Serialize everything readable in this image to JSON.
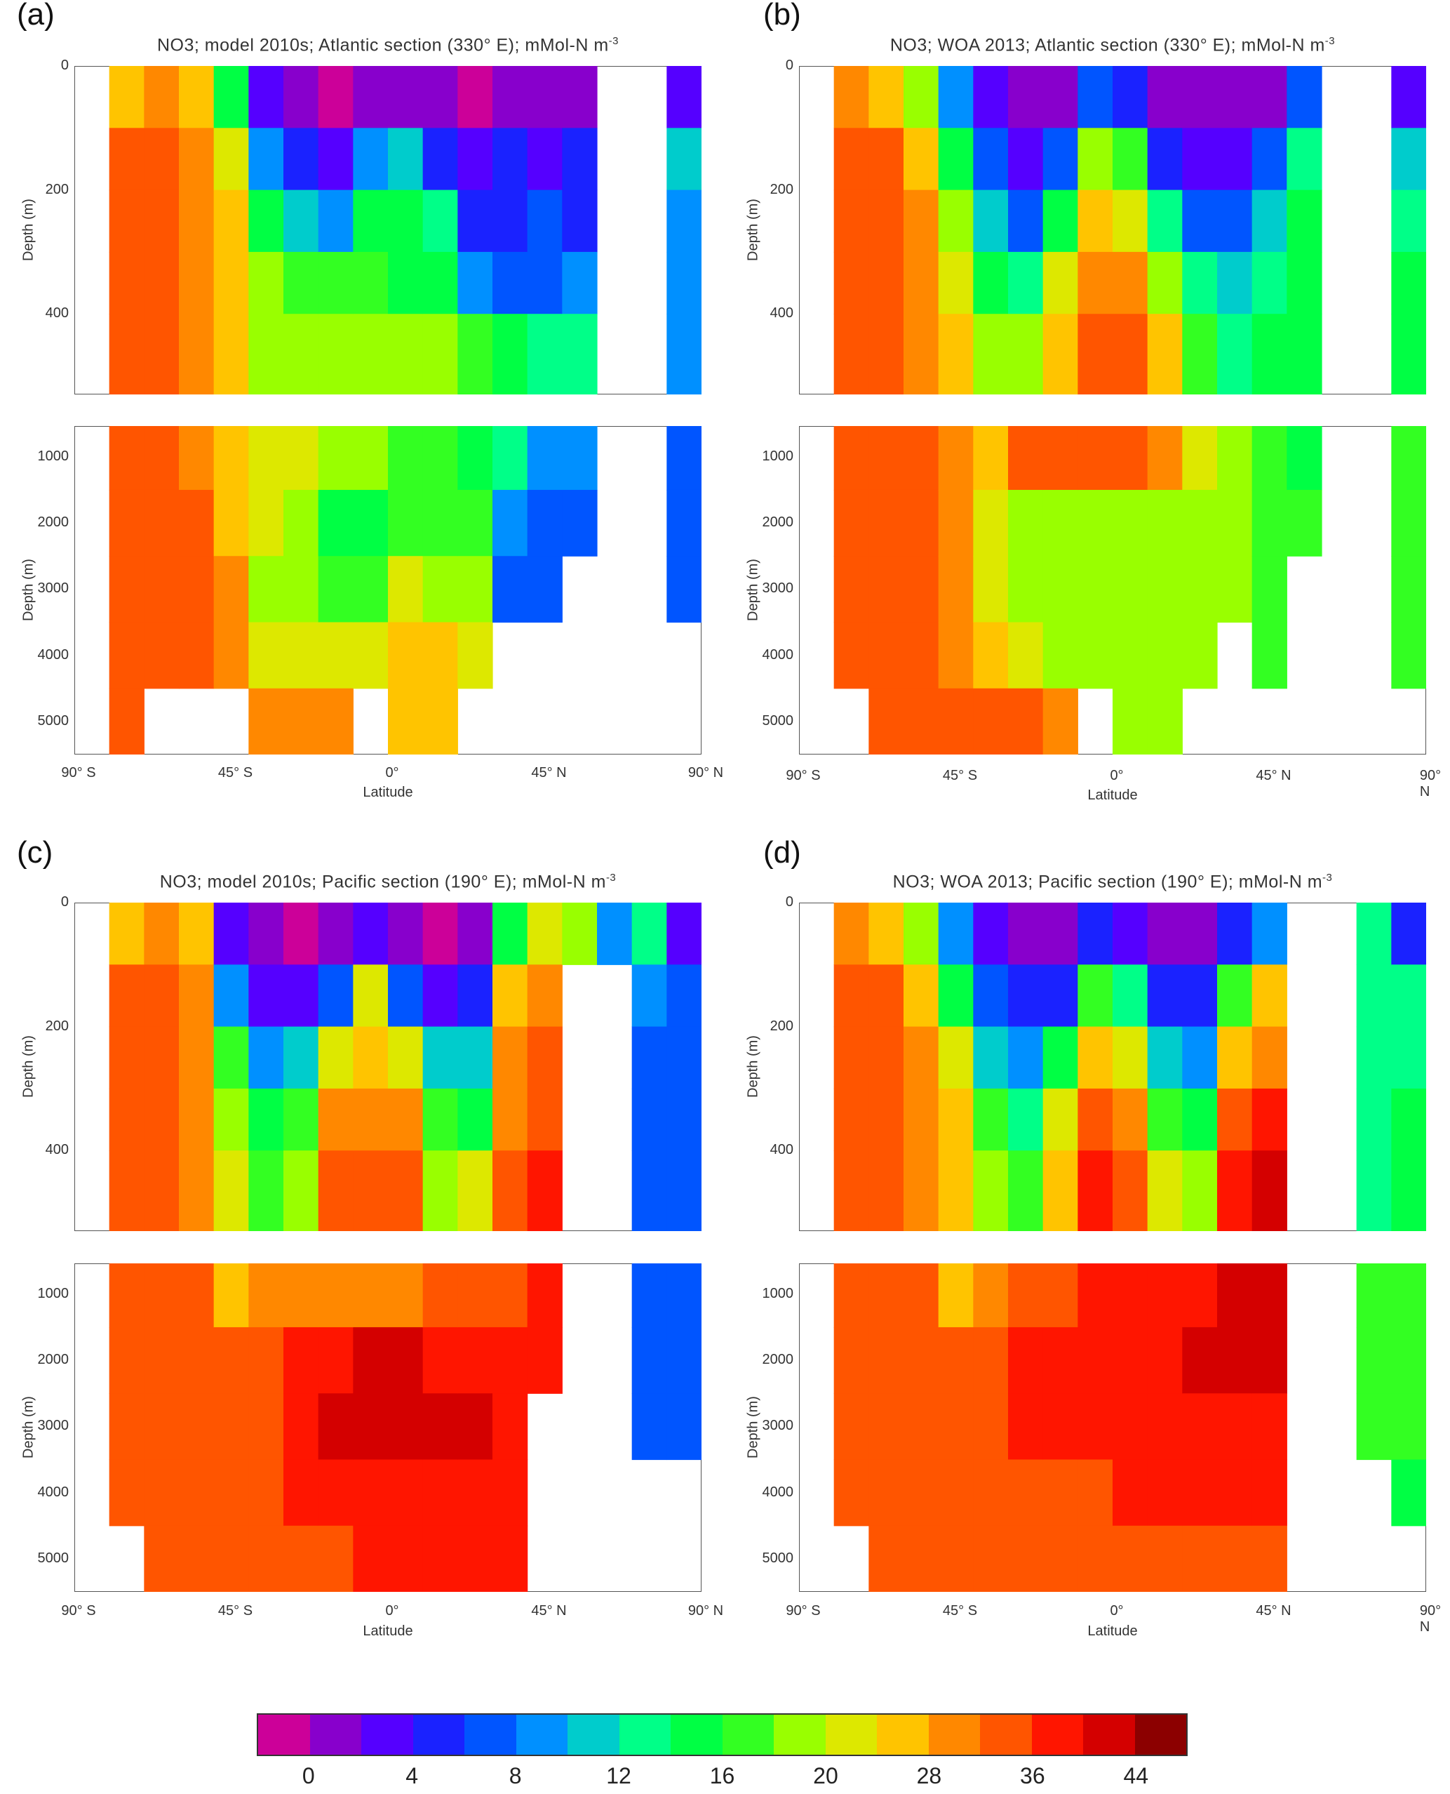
{
  "chart_data": {
    "type": "heatmap",
    "units": "mMol-N m^-3",
    "colorbar": {
      "tick_labels": [
        "0",
        "4",
        "8",
        "12",
        "16",
        "20",
        "28",
        "36",
        "44"
      ],
      "level_edges": [
        0,
        2,
        4,
        6,
        8,
        10,
        12,
        14,
        16,
        18,
        20,
        24,
        28,
        32,
        36,
        40,
        44
      ],
      "colors": [
        "#cc0099",
        "#8800cc",
        "#5500ff",
        "#1a22ff",
        "#0055ff",
        "#0090ff",
        "#00cccc",
        "#00ff88",
        "#00ff44",
        "#33ff22",
        "#99ff00",
        "#dde800",
        "#ffc400",
        "#ff8800",
        "#ff5500",
        "#ff1500",
        "#d40000",
        "#8c0000"
      ]
    },
    "x_tick_labels": [
      "90° S",
      "45° S",
      "0°",
      "45° N",
      "90° N"
    ],
    "xlabel": "Latitude",
    "ylabel": "Depth (m)",
    "upper_y_ticks": [
      "0",
      "200",
      "400"
    ],
    "lower_y_ticks": [
      "1000",
      "2000",
      "3000",
      "4000",
      "5000"
    ],
    "latitude_bin_centers": [
      -85,
      -75,
      -65,
      -55,
      -45,
      -35,
      -25,
      -15,
      -5,
      5,
      15,
      25,
      35,
      45,
      55,
      65,
      75,
      85
    ],
    "upper_depth_edges": [
      0,
      100,
      200,
      300,
      400,
      530
    ],
    "lower_depth_edges": [
      535,
      1500,
      2500,
      3500,
      4500,
      5500
    ],
    "panels": [
      {
        "letter": "(a)",
        "title": "NO3; model 2010s; Atlantic section (330° E); mMol-N m",
        "title_sup": "-3",
        "upper": [
          [
            null,
            null,
            null,
            null,
            null
          ],
          [
            26,
            34,
            34,
            34,
            34
          ],
          [
            30,
            34,
            34,
            34,
            34
          ],
          [
            26,
            30,
            30,
            30,
            30
          ],
          [
            16,
            22,
            26,
            26,
            26
          ],
          [
            3,
            9,
            15,
            19,
            20
          ],
          [
            1,
            5,
            11,
            17,
            19
          ],
          [
            0,
            3,
            9,
            17,
            19
          ],
          [
            1,
            9,
            15,
            17,
            19
          ],
          [
            1,
            11,
            15,
            15,
            19
          ],
          [
            1,
            5,
            13,
            15,
            19
          ],
          [
            0,
            3,
            5,
            9,
            17
          ],
          [
            1,
            5,
            5,
            7,
            15
          ],
          [
            1,
            3,
            7,
            7,
            13
          ],
          [
            1,
            5,
            5,
            9,
            13
          ],
          [
            null,
            null,
            null,
            null,
            null
          ],
          [
            null,
            null,
            null,
            null,
            null
          ],
          [
            3,
            11,
            9,
            9,
            9
          ]
        ],
        "lower": [
          [
            null,
            null,
            null,
            null,
            null
          ],
          [
            34,
            34,
            34,
            34,
            34
          ],
          [
            34,
            34,
            34,
            34,
            null
          ],
          [
            30,
            34,
            34,
            34,
            null
          ],
          [
            28,
            28,
            30,
            30,
            null
          ],
          [
            22,
            22,
            20,
            22,
            30
          ],
          [
            24,
            20,
            20,
            24,
            30
          ],
          [
            20,
            16,
            18,
            24,
            30
          ],
          [
            20,
            16,
            18,
            22,
            null
          ],
          [
            18,
            18,
            22,
            26,
            26
          ],
          [
            18,
            18,
            20,
            26,
            26
          ],
          [
            15,
            17,
            20,
            22,
            null
          ],
          [
            13,
            9,
            7,
            null,
            null
          ],
          [
            9,
            7,
            7,
            null,
            null
          ],
          [
            9,
            7,
            null,
            null,
            null
          ],
          [
            null,
            null,
            null,
            null,
            null
          ],
          [
            null,
            null,
            null,
            null,
            null
          ],
          [
            7,
            7,
            7,
            null,
            null
          ]
        ]
      },
      {
        "letter": "(b)",
        "title": "NO3; WOA 2013; Atlantic section (330° E); mMol-N m",
        "title_sup": "-3",
        "upper": [
          [
            null,
            null,
            null,
            null,
            null
          ],
          [
            30,
            34,
            34,
            34,
            34
          ],
          [
            26,
            34,
            34,
            34,
            34
          ],
          [
            20,
            26,
            30,
            30,
            30
          ],
          [
            9,
            15,
            20,
            24,
            28
          ],
          [
            3,
            7,
            11,
            15,
            20
          ],
          [
            1,
            3,
            7,
            13,
            19
          ],
          [
            1,
            7,
            15,
            22,
            26
          ],
          [
            7,
            19,
            26,
            30,
            34
          ],
          [
            5,
            17,
            24,
            30,
            34
          ],
          [
            1,
            5,
            13,
            20,
            26
          ],
          [
            1,
            3,
            7,
            13,
            17
          ],
          [
            1,
            3,
            7,
            11,
            13
          ],
          [
            1,
            7,
            11,
            13,
            15
          ],
          [
            7,
            13,
            15,
            15,
            15
          ],
          [
            null,
            null,
            null,
            null,
            null
          ],
          [
            null,
            null,
            null,
            null,
            null
          ],
          [
            3,
            11,
            13,
            15,
            15
          ]
        ],
        "lower": [
          [
            null,
            null,
            null,
            null,
            null
          ],
          [
            34,
            34,
            34,
            34,
            null
          ],
          [
            34,
            34,
            34,
            34,
            34
          ],
          [
            34,
            34,
            34,
            34,
            34
          ],
          [
            30,
            30,
            30,
            30,
            34
          ],
          [
            26,
            22,
            22,
            26,
            34
          ],
          [
            34,
            20,
            20,
            24,
            34
          ],
          [
            34,
            20,
            20,
            20,
            30
          ],
          [
            34,
            20,
            20,
            20,
            null
          ],
          [
            34,
            20,
            20,
            20,
            20
          ],
          [
            30,
            20,
            20,
            20,
            20
          ],
          [
            24,
            20,
            20,
            20,
            null
          ],
          [
            19,
            19,
            19,
            null,
            null
          ],
          [
            17,
            17,
            17,
            17,
            null
          ],
          [
            15,
            17,
            null,
            null,
            null
          ],
          [
            null,
            null,
            null,
            null,
            null
          ],
          [
            null,
            null,
            null,
            null,
            null
          ],
          [
            17,
            17,
            17,
            17,
            null
          ]
        ]
      },
      {
        "letter": "(c)",
        "title": "NO3; model 2010s; Pacific section (190° E); mMol-N m",
        "title_sup": "-3",
        "upper": [
          [
            null,
            null,
            null,
            null,
            null
          ],
          [
            26,
            34,
            34,
            34,
            34
          ],
          [
            30,
            34,
            34,
            34,
            34
          ],
          [
            26,
            30,
            30,
            30,
            30
          ],
          [
            3,
            9,
            17,
            20,
            22
          ],
          [
            1,
            3,
            9,
            15,
            17
          ],
          [
            0,
            3,
            11,
            17,
            19
          ],
          [
            1,
            7,
            22,
            30,
            36
          ],
          [
            3,
            22,
            26,
            30,
            36
          ],
          [
            1,
            7,
            24,
            30,
            34
          ],
          [
            0,
            3,
            11,
            17,
            20
          ],
          [
            1,
            5,
            11,
            15,
            22
          ],
          [
            15,
            26,
            30,
            30,
            36
          ],
          [
            22,
            30,
            36,
            36,
            40
          ],
          [
            20,
            null,
            null,
            null,
            null
          ],
          [
            10,
            null,
            null,
            null,
            null
          ],
          [
            13,
            9,
            7,
            7,
            7
          ],
          [
            3,
            7,
            7,
            7,
            7
          ]
        ],
        "lower": [
          [
            null,
            null,
            null,
            null,
            null
          ],
          [
            34,
            34,
            34,
            34,
            null
          ],
          [
            34,
            34,
            34,
            34,
            34
          ],
          [
            34,
            34,
            34,
            34,
            34
          ],
          [
            28,
            34,
            34,
            34,
            34
          ],
          [
            30,
            36,
            36,
            36,
            36
          ],
          [
            32,
            38,
            40,
            40,
            36
          ],
          [
            30,
            40,
            42,
            40,
            36
          ],
          [
            30,
            42,
            42,
            40,
            40
          ],
          [
            30,
            42,
            42,
            40,
            40
          ],
          [
            34,
            40,
            42,
            40,
            40
          ],
          [
            34,
            40,
            42,
            40,
            40
          ],
          [
            36,
            40,
            40,
            40,
            40
          ],
          [
            38,
            40,
            null,
            null,
            null
          ],
          [
            null,
            null,
            null,
            null,
            null
          ],
          [
            null,
            null,
            null,
            null,
            null
          ],
          [
            8,
            7,
            7,
            null,
            null
          ],
          [
            8,
            7,
            7,
            null,
            null
          ]
        ]
      },
      {
        "letter": "(d)",
        "title": "NO3; WOA 2013; Pacific section (190° E); mMol-N m",
        "title_sup": "-3",
        "upper": [
          [
            null,
            null,
            null,
            null,
            null
          ],
          [
            30,
            34,
            34,
            34,
            34
          ],
          [
            26,
            34,
            34,
            34,
            34
          ],
          [
            20,
            26,
            30,
            30,
            30
          ],
          [
            9,
            15,
            22,
            26,
            28
          ],
          [
            3,
            7,
            11,
            17,
            20
          ],
          [
            1,
            5,
            9,
            13,
            17
          ],
          [
            1,
            5,
            15,
            22,
            26
          ],
          [
            5,
            17,
            26,
            34,
            38
          ],
          [
            3,
            13,
            22,
            30,
            34
          ],
          [
            1,
            5,
            11,
            17,
            22
          ],
          [
            1,
            5,
            9,
            15,
            20
          ],
          [
            5,
            17,
            26,
            36,
            40
          ],
          [
            9,
            26,
            30,
            40,
            42
          ],
          [
            null,
            null,
            null,
            null,
            null
          ],
          [
            null,
            null,
            null,
            null,
            null
          ],
          [
            13,
            13,
            13,
            13,
            13
          ],
          [
            5,
            13,
            13,
            15,
            15
          ]
        ],
        "lower": [
          [
            null,
            null,
            null,
            null,
            null
          ],
          [
            34,
            34,
            34,
            34,
            null
          ],
          [
            34,
            34,
            34,
            34,
            34
          ],
          [
            34,
            34,
            34,
            34,
            34
          ],
          [
            26,
            34,
            34,
            34,
            34
          ],
          [
            30,
            36,
            36,
            34,
            34
          ],
          [
            34,
            38,
            40,
            36,
            34
          ],
          [
            36,
            40,
            40,
            36,
            36
          ],
          [
            38,
            40,
            40,
            36,
            36
          ],
          [
            40,
            40,
            40,
            38,
            36
          ],
          [
            40,
            40,
            40,
            38,
            36
          ],
          [
            40,
            42,
            40,
            40,
            36
          ],
          [
            44,
            42,
            40,
            38,
            36
          ],
          [
            44,
            42,
            40,
            40,
            36
          ],
          [
            null,
            null,
            null,
            null,
            null
          ],
          [
            null,
            null,
            null,
            null,
            null
          ],
          [
            17,
            17,
            17,
            null,
            null
          ],
          [
            17,
            17,
            17,
            16,
            null
          ]
        ]
      }
    ]
  }
}
